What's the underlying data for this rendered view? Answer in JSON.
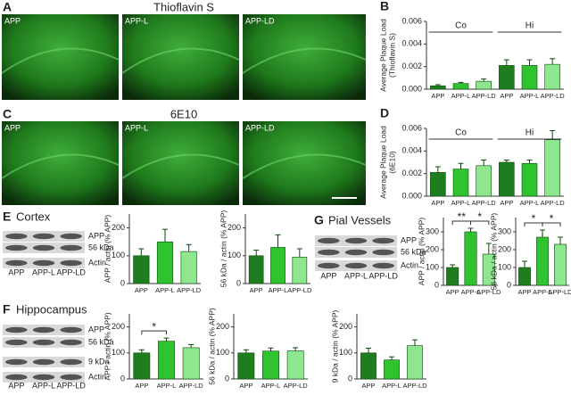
{
  "chart_data": [
    {
      "type": "bar",
      "panel": "B",
      "ylabel": [
        "Average Plaque Load",
        "(Thioflavin S)"
      ],
      "categories": [
        "APP",
        "APP-L",
        "APP-LD",
        "APP",
        "APP-L",
        "APP-LD"
      ],
      "values": [
        0.0003,
        0.0005,
        0.0007,
        0.0021,
        0.0021,
        0.0022
      ],
      "errors": [
        0.0001,
        0.0001,
        0.0002,
        0.0005,
        0.0005,
        0.0005
      ],
      "colors": [
        "#1e7d1e",
        "#2fc42f",
        "#8ee68e",
        "#1e7d1e",
        "#2fc42f",
        "#8ee68e"
      ],
      "ylim": [
        0,
        0.006
      ],
      "yticks": [
        {
          "value": 0,
          "label": "0.000"
        },
        {
          "value": 0.002,
          "label": "0.002"
        },
        {
          "value": 0.004,
          "label": "0.004"
        },
        {
          "value": 0.006,
          "label": "0.006"
        }
      ],
      "groups": [
        {
          "label": "Co",
          "between": [
            0,
            2
          ]
        },
        {
          "label": "Hi",
          "between": [
            3,
            5
          ]
        }
      ]
    },
    {
      "type": "bar",
      "panel": "D",
      "ylabel": [
        "Average Plaque Load",
        "(6E10)"
      ],
      "categories": [
        "APP",
        "APP-L",
        "APP-LD",
        "APP",
        "APP-L",
        "APP-LD"
      ],
      "values": [
        0.0021,
        0.0024,
        0.0027,
        0.003,
        0.0029,
        0.005
      ],
      "errors": [
        0.0005,
        0.0005,
        0.0005,
        0.0002,
        0.0003,
        0.0008
      ],
      "colors": [
        "#1e7d1e",
        "#2fc42f",
        "#8ee68e",
        "#1e7d1e",
        "#2fc42f",
        "#8ee68e"
      ],
      "ylim": [
        0,
        0.006
      ],
      "yticks": [
        {
          "value": 0,
          "label": "0.000"
        },
        {
          "value": 0.002,
          "label": "0.002"
        },
        {
          "value": 0.004,
          "label": "0.004"
        },
        {
          "value": 0.006,
          "label": "0.006"
        }
      ],
      "groups": [
        {
          "label": "Co",
          "between": [
            0,
            2
          ]
        },
        {
          "label": "Hi",
          "between": [
            3,
            5
          ]
        }
      ]
    },
    {
      "type": "bar",
      "ylabel": [
        "APP / actin (% APP)"
      ],
      "categories": [
        "APP",
        "APP-L",
        "APP-LD"
      ],
      "values": [
        100,
        150,
        115
      ],
      "errors": [
        25,
        45,
        25
      ],
      "colors": [
        "#1e7d1e",
        "#2fc42f",
        "#8ee68e"
      ],
      "ylim": [
        0,
        250
      ],
      "yticks": [
        0,
        100,
        200
      ]
    },
    {
      "type": "bar",
      "ylabel": [
        "56 kDa / actin (% APP)"
      ],
      "categories": [
        "APP",
        "APP-L",
        "APP-LD"
      ],
      "values": [
        100,
        130,
        95
      ],
      "errors": [
        20,
        45,
        30
      ],
      "colors": [
        "#1e7d1e",
        "#2fc42f",
        "#8ee68e"
      ],
      "ylim": [
        0,
        250
      ],
      "yticks": [
        0,
        100,
        200
      ]
    },
    {
      "type": "bar",
      "ylabel": [
        "APP / actin (% APP)"
      ],
      "categories": [
        "APP",
        "APP-L",
        "APP-LD"
      ],
      "values": [
        100,
        300,
        175
      ],
      "errors": [
        15,
        20,
        60
      ],
      "colors": [
        "#1e7d1e",
        "#2fc42f",
        "#8ee68e"
      ],
      "ylim": [
        0,
        380
      ],
      "yticks": [
        0,
        100,
        200,
        300
      ],
      "brackets": [
        {
          "label": "**",
          "between": [
            0,
            1
          ]
        },
        {
          "label": "*",
          "between": [
            1,
            2
          ]
        }
      ]
    },
    {
      "type": "bar",
      "ylabel": [
        "56 kDa / actin (% APP)"
      ],
      "categories": [
        "APP",
        "APP-L",
        "APP-LD"
      ],
      "values": [
        100,
        270,
        230
      ],
      "errors": [
        35,
        40,
        40
      ],
      "colors": [
        "#1e7d1e",
        "#2fc42f",
        "#8ee68e"
      ],
      "ylim": [
        0,
        380
      ],
      "yticks": [
        0,
        100,
        200,
        300
      ],
      "brackets": [
        {
          "label": "*",
          "between": [
            0,
            1
          ]
        },
        {
          "label": "*",
          "between": [
            1,
            2
          ]
        }
      ]
    },
    {
      "type": "bar",
      "ylabel": [
        "APP / actin (% APP)"
      ],
      "categories": [
        "APP",
        "APP-L",
        "APP-LD"
      ],
      "values": [
        100,
        145,
        120
      ],
      "errors": [
        12,
        12,
        12
      ],
      "colors": [
        "#1e7d1e",
        "#2fc42f",
        "#8ee68e"
      ],
      "ylim": [
        0,
        250
      ],
      "yticks": [
        0,
        100,
        200
      ],
      "brackets": [
        {
          "label": "*",
          "between": [
            0,
            1
          ]
        }
      ]
    },
    {
      "type": "bar",
      "ylabel": [
        "56 kDa / actin (% APP)"
      ],
      "categories": [
        "APP",
        "APP-L",
        "APP-LD"
      ],
      "values": [
        100,
        107,
        108
      ],
      "errors": [
        12,
        12,
        12
      ],
      "colors": [
        "#1e7d1e",
        "#2fc42f",
        "#8ee68e"
      ],
      "ylim": [
        0,
        250
      ],
      "yticks": [
        0,
        100,
        200
      ]
    },
    {
      "type": "bar",
      "ylabel": [
        "9 kDa / actin (% APP)"
      ],
      "categories": [
        "APP",
        "APP-L",
        "APP-LD"
      ],
      "values": [
        100,
        73,
        128
      ],
      "errors": [
        18,
        12,
        22
      ],
      "colors": [
        "#1e7d1e",
        "#2fc42f",
        "#8ee68e"
      ],
      "ylim": [
        0,
        250
      ],
      "yticks": [
        0,
        100,
        200
      ]
    }
  ],
  "micrographs": [
    {
      "letter": "A",
      "title": "Thioflavin S",
      "images": [
        "APP",
        "APP-L",
        "APP-LD"
      ]
    },
    {
      "letter": "C",
      "title": "6E10",
      "images": [
        "APP",
        "APP-L",
        "APP-LD"
      ]
    }
  ],
  "blots": [
    {
      "letter": "E",
      "title": "Cortex",
      "bands": [
        "APP",
        "56 kDa",
        "Actin"
      ],
      "lanes": [
        "APP",
        "APP-L",
        "APP-LD"
      ]
    },
    {
      "letter": "G",
      "title": "Pial Vessels",
      "bands": [
        "APP",
        "56 kDa",
        "Actin"
      ],
      "lanes": [
        "APP",
        "APP-L",
        "APP-LD"
      ]
    },
    {
      "letter": "F",
      "title": "Hippocampus",
      "bands": [
        "APP",
        "56 kDa",
        "9 kDa",
        "Actin"
      ],
      "lanes": [
        "APP",
        "APP-L",
        "APP-LD"
      ]
    }
  ]
}
